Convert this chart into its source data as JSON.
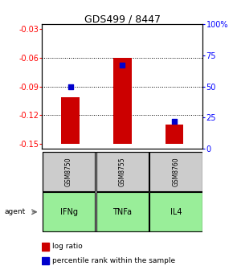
{
  "title": "GDS499 / 8447",
  "samples": [
    "IFNg",
    "TNFa",
    "IL4"
  ],
  "gsm_labels": [
    "GSM8750",
    "GSM8755",
    "GSM8760"
  ],
  "log_ratios": [
    -0.101,
    -0.06,
    -0.13
  ],
  "percentile_ranks": [
    0.5,
    0.67,
    0.22
  ],
  "ylim_left": [
    -0.155,
    -0.025
  ],
  "ylim_right": [
    0.0,
    1.0
  ],
  "yticks_left": [
    -0.15,
    -0.12,
    -0.09,
    -0.06,
    -0.03
  ],
  "ytick_labels_left": [
    "-0.15",
    "-0.12",
    "-0.09",
    "-0.06",
    "-0.03"
  ],
  "yticks_right": [
    0.0,
    0.25,
    0.5,
    0.75,
    1.0
  ],
  "ytick_labels_right": [
    "0",
    "25",
    "50",
    "75",
    "100%"
  ],
  "grid_values": [
    -0.06,
    -0.09,
    -0.12
  ],
  "bar_color": "#cc0000",
  "dot_color": "#0000cc",
  "agent_label": "agent",
  "agent_bg": "#99ee99",
  "gsm_bg": "#cccccc",
  "bar_bottom": -0.15,
  "bar_width": 0.35,
  "dot_size": 25,
  "title_fontsize": 9,
  "tick_fontsize": 7,
  "legend_fontsize": 6.5
}
